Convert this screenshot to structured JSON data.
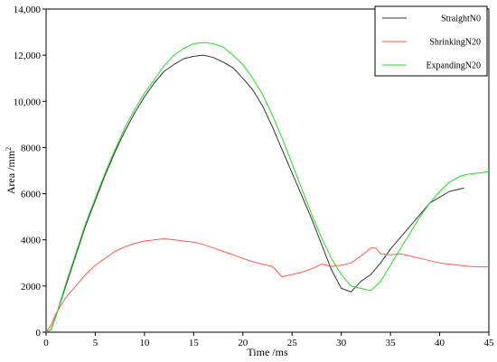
{
  "chart_data": {
    "type": "line",
    "xlabel": "Time /ms",
    "ylabel_main": "Area /mm",
    "ylabel_sup": "2",
    "xlim": [
      0,
      45
    ],
    "ylim": [
      0,
      14000
    ],
    "x_ticks": [
      0,
      5,
      10,
      15,
      20,
      25,
      30,
      35,
      40,
      45
    ],
    "y_ticks": [
      0,
      2000,
      4000,
      6000,
      8000,
      10000,
      12000,
      14000
    ],
    "y_tick_labels": [
      "0",
      "2000",
      "4000",
      "6000",
      "8000",
      "10,000",
      "12,000",
      "14,000"
    ],
    "grid": false,
    "legend_position": "top-right",
    "series": [
      {
        "name": "StraightN0",
        "color": "#333333",
        "points": [
          [
            0,
            0
          ],
          [
            0.5,
            100
          ],
          [
            1,
            700
          ],
          [
            2,
            2000
          ],
          [
            3,
            3300
          ],
          [
            4,
            4600
          ],
          [
            5,
            5700
          ],
          [
            6,
            6800
          ],
          [
            7,
            7800
          ],
          [
            8,
            8700
          ],
          [
            9,
            9500
          ],
          [
            10,
            10200
          ],
          [
            11,
            10800
          ],
          [
            12,
            11300
          ],
          [
            13,
            11600
          ],
          [
            14,
            11850
          ],
          [
            15,
            11950
          ],
          [
            16,
            12000
          ],
          [
            17,
            11900
          ],
          [
            18,
            11700
          ],
          [
            19,
            11450
          ],
          [
            20,
            11000
          ],
          [
            21,
            10500
          ],
          [
            22,
            9800
          ],
          [
            23,
            8900
          ],
          [
            24,
            7900
          ],
          [
            25,
            6900
          ],
          [
            26,
            5900
          ],
          [
            27,
            4900
          ],
          [
            28,
            3800
          ],
          [
            29,
            2700
          ],
          [
            30,
            1900
          ],
          [
            31,
            1750
          ],
          [
            32,
            2200
          ],
          [
            33,
            2500
          ],
          [
            34,
            3000
          ],
          [
            35,
            3600
          ],
          [
            36,
            4100
          ],
          [
            37,
            4600
          ],
          [
            38,
            5100
          ],
          [
            39,
            5600
          ],
          [
            40,
            5850
          ],
          [
            41,
            6100
          ],
          [
            42,
            6200
          ],
          [
            42.5,
            6250
          ]
        ]
      },
      {
        "name": "ShrinkingN20",
        "color": "#ff5a4a",
        "points": [
          [
            0,
            0
          ],
          [
            0.5,
            300
          ],
          [
            1,
            800
          ],
          [
            2,
            1500
          ],
          [
            3,
            2000
          ],
          [
            4,
            2500
          ],
          [
            5,
            2900
          ],
          [
            6,
            3200
          ],
          [
            7,
            3500
          ],
          [
            8,
            3700
          ],
          [
            9,
            3850
          ],
          [
            10,
            3950
          ],
          [
            11,
            4000
          ],
          [
            12,
            4050
          ],
          [
            13,
            4000
          ],
          [
            14,
            3950
          ],
          [
            15,
            3900
          ],
          [
            16,
            3800
          ],
          [
            17,
            3650
          ],
          [
            18,
            3500
          ],
          [
            19,
            3350
          ],
          [
            20,
            3200
          ],
          [
            21,
            3050
          ],
          [
            22,
            2950
          ],
          [
            23,
            2850
          ],
          [
            24,
            2400
          ],
          [
            25,
            2500
          ],
          [
            26,
            2600
          ],
          [
            27,
            2750
          ],
          [
            28,
            2950
          ],
          [
            29,
            2850
          ],
          [
            30,
            2900
          ],
          [
            31,
            3000
          ],
          [
            32,
            3300
          ],
          [
            33,
            3650
          ],
          [
            33.5,
            3650
          ],
          [
            34,
            3400
          ],
          [
            35,
            3350
          ],
          [
            36,
            3400
          ],
          [
            37,
            3300
          ],
          [
            38,
            3200
          ],
          [
            39,
            3100
          ],
          [
            40,
            3000
          ],
          [
            41,
            2950
          ],
          [
            42,
            2900
          ],
          [
            43,
            2850
          ],
          [
            44,
            2830
          ],
          [
            45,
            2830
          ]
        ]
      },
      {
        "name": "ExpandingN20",
        "color": "#22dd22",
        "points": [
          [
            0,
            0
          ],
          [
            0.5,
            100
          ],
          [
            1,
            700
          ],
          [
            2,
            2100
          ],
          [
            3,
            3400
          ],
          [
            4,
            4700
          ],
          [
            5,
            5800
          ],
          [
            6,
            6900
          ],
          [
            7,
            7900
          ],
          [
            8,
            8850
          ],
          [
            9,
            9650
          ],
          [
            10,
            10350
          ],
          [
            11,
            10950
          ],
          [
            12,
            11550
          ],
          [
            13,
            12000
          ],
          [
            14,
            12300
          ],
          [
            15,
            12500
          ],
          [
            16,
            12550
          ],
          [
            17,
            12500
          ],
          [
            18,
            12350
          ],
          [
            19,
            12000
          ],
          [
            20,
            11600
          ],
          [
            21,
            11000
          ],
          [
            22,
            10300
          ],
          [
            23,
            9400
          ],
          [
            24,
            8400
          ],
          [
            25,
            7300
          ],
          [
            26,
            6200
          ],
          [
            27,
            5100
          ],
          [
            28,
            4100
          ],
          [
            29,
            3200
          ],
          [
            30,
            2500
          ],
          [
            31,
            2000
          ],
          [
            32,
            1900
          ],
          [
            33,
            1800
          ],
          [
            34,
            2200
          ],
          [
            35,
            2900
          ],
          [
            36,
            3600
          ],
          [
            37,
            4300
          ],
          [
            38,
            5000
          ],
          [
            39,
            5600
          ],
          [
            40,
            6100
          ],
          [
            41,
            6500
          ],
          [
            42,
            6750
          ],
          [
            43,
            6850
          ],
          [
            44,
            6900
          ],
          [
            45,
            6950
          ]
        ]
      }
    ]
  }
}
